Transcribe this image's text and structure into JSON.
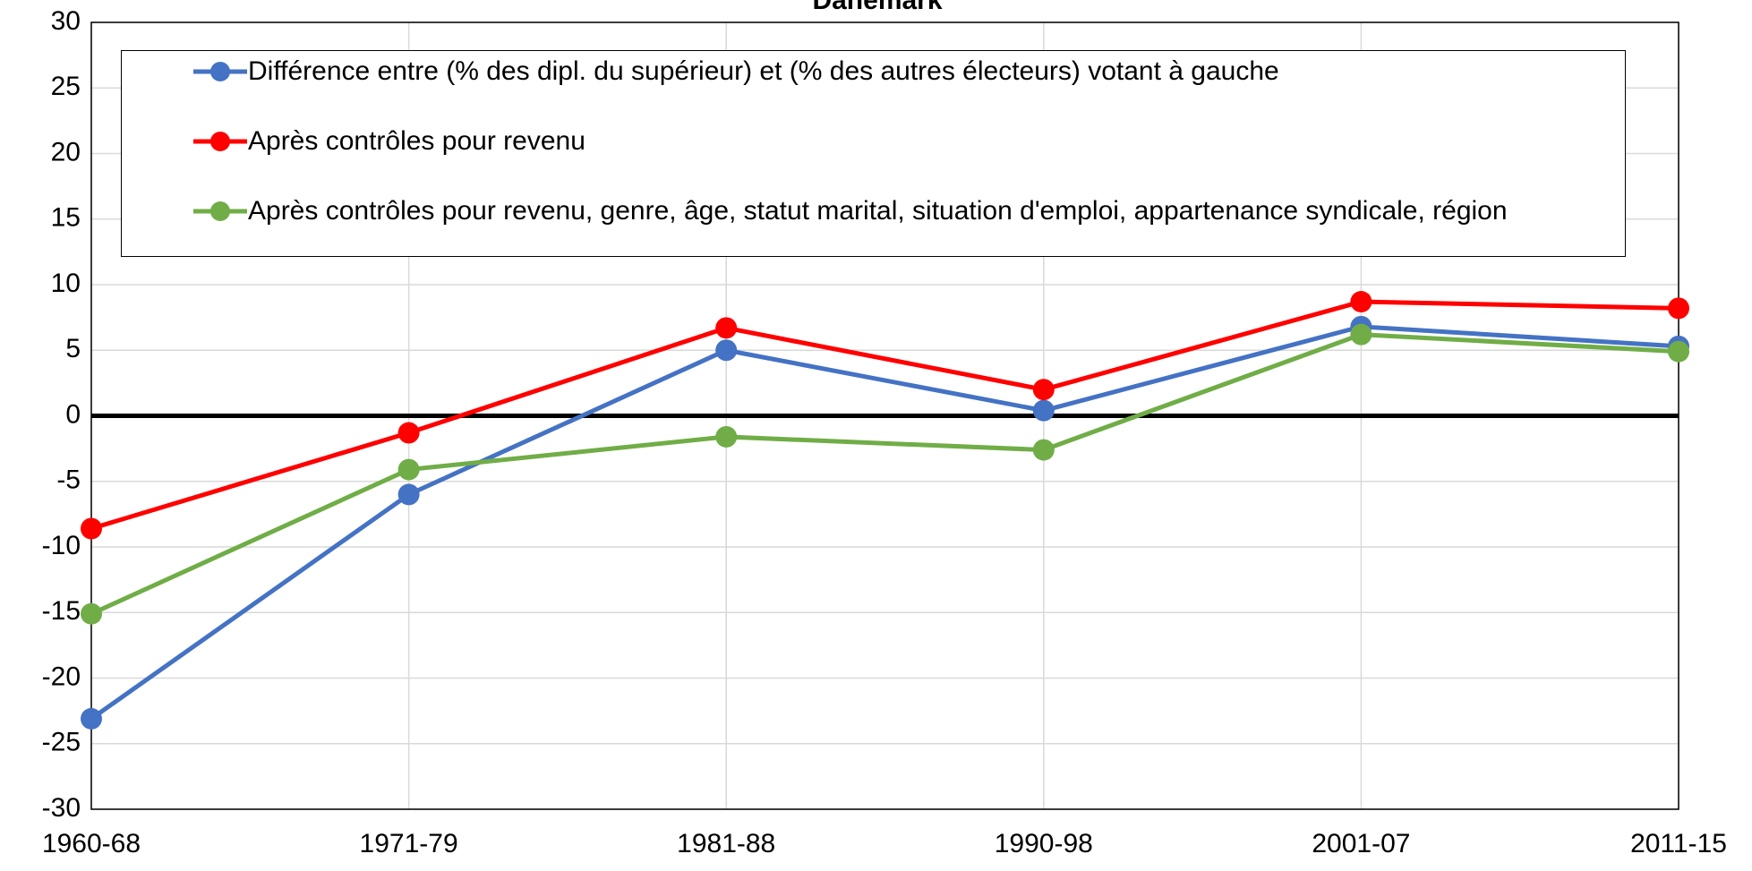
{
  "chart_data": {
    "type": "line",
    "title": "Danemark",
    "categories": [
      "1960-68",
      "1971-79",
      "1981-88",
      "1990-98",
      "2001-07",
      "2011-15"
    ],
    "series": [
      {
        "name": "Différence entre (% des dipl. du supérieur) et (% des autres électeurs) votant à gauche",
        "color": "#4472c4",
        "values": [
          -23.1,
          -6.0,
          5.0,
          0.4,
          6.8,
          5.3
        ]
      },
      {
        "name": "Après contrôles pour revenu",
        "color": "#ff0000",
        "values": [
          -8.6,
          -1.3,
          6.7,
          2.0,
          8.7,
          8.2
        ]
      },
      {
        "name": "Après contrôles pour revenu, genre, âge, statut marital, situation d'emploi, appartenance syndicale, région",
        "color": "#70ad47",
        "values": [
          -15.1,
          -4.1,
          -1.6,
          -2.6,
          6.2,
          4.9
        ]
      }
    ],
    "ylim": [
      -30,
      30
    ],
    "yticks": [
      -30,
      -25,
      -20,
      -15,
      -10,
      -5,
      0,
      5,
      10,
      15,
      20,
      25,
      30
    ],
    "grid": true,
    "legend": "top"
  }
}
